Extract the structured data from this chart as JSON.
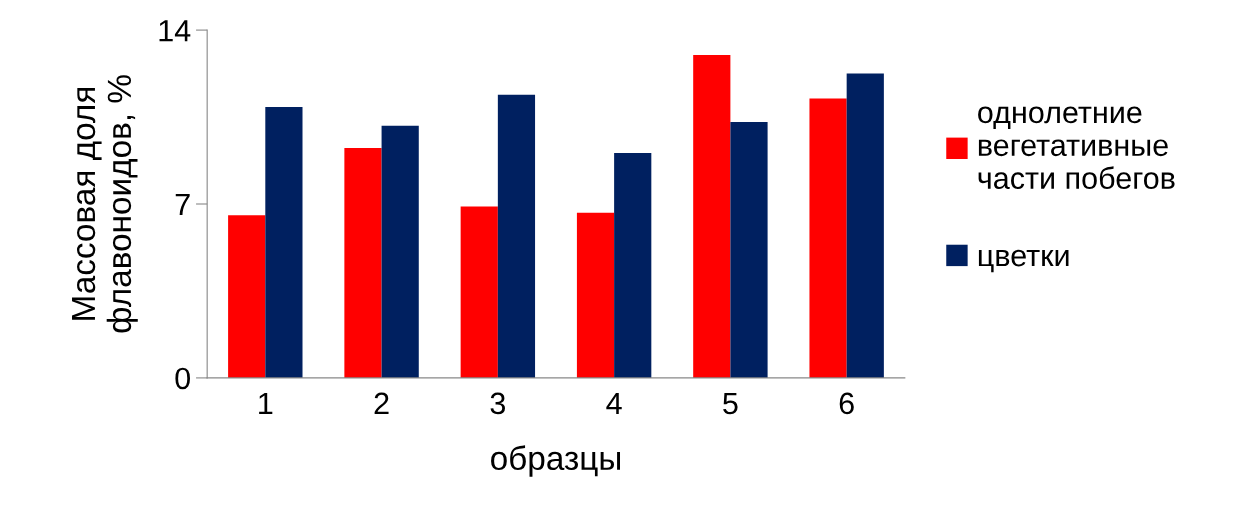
{
  "chart_data": {
    "type": "bar",
    "xlabel": "образцы",
    "ylabel": "Массовая доля\nфлавоноидов, %",
    "categories": [
      "1",
      "2",
      "3",
      "4",
      "5",
      "6"
    ],
    "series": [
      {
        "name": "однолетние\nвегетативные\nчасти побегов",
        "color": "#ff0000",
        "values": [
          6.55,
          9.25,
          6.9,
          6.65,
          13.0,
          11.25
        ]
      },
      {
        "name": "цветки",
        "color": "#002060",
        "values": [
          10.9,
          10.15,
          11.4,
          9.05,
          10.3,
          12.25
        ]
      }
    ],
    "ylim": [
      0,
      14
    ],
    "yticks": [
      0,
      7,
      14
    ],
    "grid": false,
    "legend": "right"
  }
}
